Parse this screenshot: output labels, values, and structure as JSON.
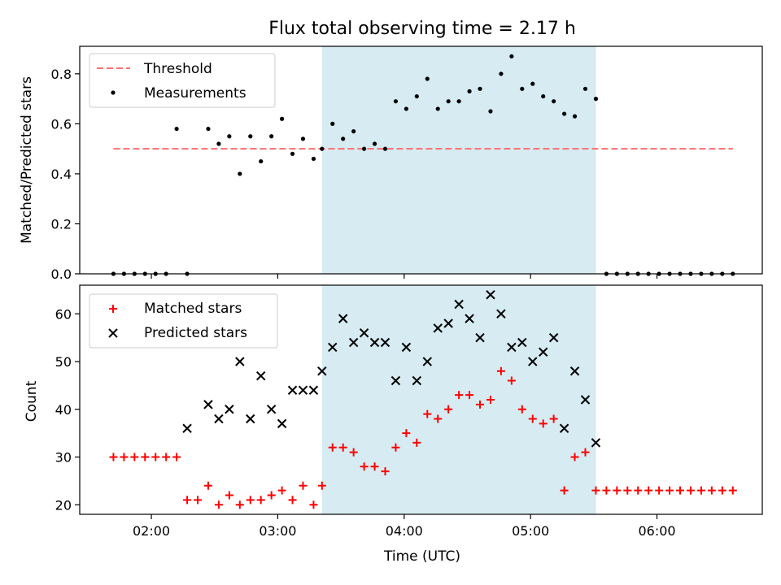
{
  "chart_data": [
    {
      "type": "scatter",
      "title": "Flux total observing time = 2.17 h",
      "xlabel": "",
      "ylabel": "Matched/Predicted stars",
      "xlim": [
        "01:26",
        "06:50"
      ],
      "ylim": [
        0,
        0.91
      ],
      "yticks": [
        0.0,
        0.2,
        0.4,
        0.6,
        0.8
      ],
      "ytick_labels": [
        "0.0",
        "0.2",
        "0.4",
        "0.6",
        "0.8"
      ],
      "xticks": [
        "02:00",
        "03:00",
        "04:00",
        "05:00",
        "06:00"
      ],
      "shaded_interval": {
        "x0": "03:21",
        "x1": "05:31",
        "color": "#add8e6"
      },
      "legend": {
        "placement": "top-left",
        "entries": [
          "Threshold",
          "Measurements"
        ]
      },
      "threshold": {
        "name": "Threshold",
        "y": 0.5,
        "x0": "01:42",
        "x1": "06:36",
        "color": "#ff6e6e",
        "style": "dashed"
      },
      "series": [
        {
          "name": "Measurements",
          "color": "#000000",
          "marker": "dot",
          "x": [
            "01:42",
            "01:47",
            "01:52",
            "01:57",
            "02:02",
            "02:07",
            "02:12",
            "02:17",
            "02:27",
            "02:32",
            "02:37",
            "02:42",
            "02:47",
            "02:52",
            "02:57",
            "03:02",
            "03:07",
            "03:12",
            "03:17",
            "03:21",
            "03:26",
            "03:31",
            "03:36",
            "03:41",
            "03:46",
            "03:51",
            "03:56",
            "04:01",
            "04:06",
            "04:11",
            "04:16",
            "04:21",
            "04:26",
            "04:31",
            "04:36",
            "04:41",
            "04:46",
            "04:51",
            "04:56",
            "05:01",
            "05:06",
            "05:11",
            "05:16",
            "05:21",
            "05:26",
            "05:31",
            "05:36",
            "05:41",
            "05:46",
            "05:51",
            "05:56",
            "06:01",
            "06:06",
            "06:11",
            "06:16",
            "06:21",
            "06:26",
            "06:31",
            "06:36"
          ],
          "y": [
            0,
            0,
            0,
            0,
            0,
            0,
            0.58,
            0,
            0.58,
            0.52,
            0.55,
            0.4,
            0.55,
            0.45,
            0.55,
            0.62,
            0.48,
            0.54,
            0.46,
            0.5,
            0.6,
            0.54,
            0.57,
            0.5,
            0.52,
            0.5,
            0.69,
            0.66,
            0.71,
            0.78,
            0.66,
            0.69,
            0.69,
            0.73,
            0.74,
            0.65,
            0.8,
            0.87,
            0.74,
            0.76,
            0.71,
            0.69,
            0.64,
            0.63,
            0.74,
            0.7,
            0,
            0,
            0,
            0,
            0,
            0,
            0,
            0,
            0,
            0,
            0,
            0,
            0
          ]
        }
      ]
    },
    {
      "type": "scatter",
      "title": "",
      "xlabel": "Time (UTC)",
      "ylabel": "Count",
      "xlim": [
        "01:26",
        "06:50"
      ],
      "ylim": [
        18,
        66
      ],
      "yticks": [
        20,
        30,
        40,
        50,
        60
      ],
      "ytick_labels": [
        "20",
        "30",
        "40",
        "50",
        "60"
      ],
      "xticks": [
        "02:00",
        "03:00",
        "04:00",
        "05:00",
        "06:00"
      ],
      "xtick_labels": [
        "02:00",
        "03:00",
        "04:00",
        "05:00",
        "06:00"
      ],
      "shaded_interval": {
        "x0": "03:21",
        "x1": "05:31",
        "color": "#add8e6"
      },
      "legend": {
        "placement": "top-left",
        "entries": [
          "Matched stars",
          "Predicted stars"
        ]
      },
      "series": [
        {
          "name": "Matched stars",
          "color": "#ff0000",
          "marker": "plus",
          "x": [
            "01:42",
            "01:47",
            "01:52",
            "01:57",
            "02:02",
            "02:07",
            "02:12",
            "02:17",
            "02:22",
            "02:27",
            "02:32",
            "02:37",
            "02:42",
            "02:47",
            "02:52",
            "02:57",
            "03:02",
            "03:07",
            "03:12",
            "03:17",
            "03:21",
            "03:26",
            "03:31",
            "03:36",
            "03:41",
            "03:46",
            "03:51",
            "03:56",
            "04:01",
            "04:06",
            "04:11",
            "04:16",
            "04:21",
            "04:26",
            "04:31",
            "04:36",
            "04:41",
            "04:46",
            "04:51",
            "04:56",
            "05:01",
            "05:06",
            "05:11",
            "05:16",
            "05:21",
            "05:26",
            "05:31",
            "05:36",
            "05:41",
            "05:46",
            "05:51",
            "05:56",
            "06:01",
            "06:06",
            "06:11",
            "06:16",
            "06:21",
            "06:26",
            "06:31",
            "06:36"
          ],
          "y": [
            30,
            30,
            30,
            30,
            30,
            30,
            30,
            21,
            21,
            24,
            20,
            22,
            20,
            21,
            21,
            22,
            23,
            21,
            24,
            20,
            24,
            32,
            32,
            31,
            28,
            28,
            27,
            32,
            35,
            33,
            39,
            38,
            40,
            43,
            43,
            41,
            42,
            48,
            46,
            40,
            38,
            37,
            38,
            23,
            30,
            31,
            23,
            23,
            23,
            23,
            23,
            23,
            23,
            23,
            23,
            23,
            23,
            23,
            23,
            23
          ]
        },
        {
          "name": "Predicted stars",
          "color": "#000000",
          "marker": "x",
          "x": [
            "02:17",
            "02:27",
            "02:32",
            "02:37",
            "02:42",
            "02:47",
            "02:52",
            "02:57",
            "03:02",
            "03:07",
            "03:12",
            "03:17",
            "03:21",
            "03:26",
            "03:31",
            "03:36",
            "03:41",
            "03:46",
            "03:51",
            "03:56",
            "04:01",
            "04:06",
            "04:11",
            "04:16",
            "04:21",
            "04:26",
            "04:31",
            "04:36",
            "04:41",
            "04:46",
            "04:51",
            "04:56",
            "05:01",
            "05:06",
            "05:11",
            "05:16",
            "05:21",
            "05:26",
            "05:31"
          ],
          "y": [
            36,
            41,
            38,
            40,
            50,
            38,
            47,
            40,
            37,
            44,
            44,
            44,
            48,
            53,
            59,
            54,
            56,
            54,
            54,
            46,
            53,
            46,
            50,
            57,
            58,
            62,
            59,
            55,
            64,
            60,
            53,
            54,
            50,
            52,
            55,
            36,
            48,
            42,
            33
          ]
        }
      ]
    }
  ]
}
